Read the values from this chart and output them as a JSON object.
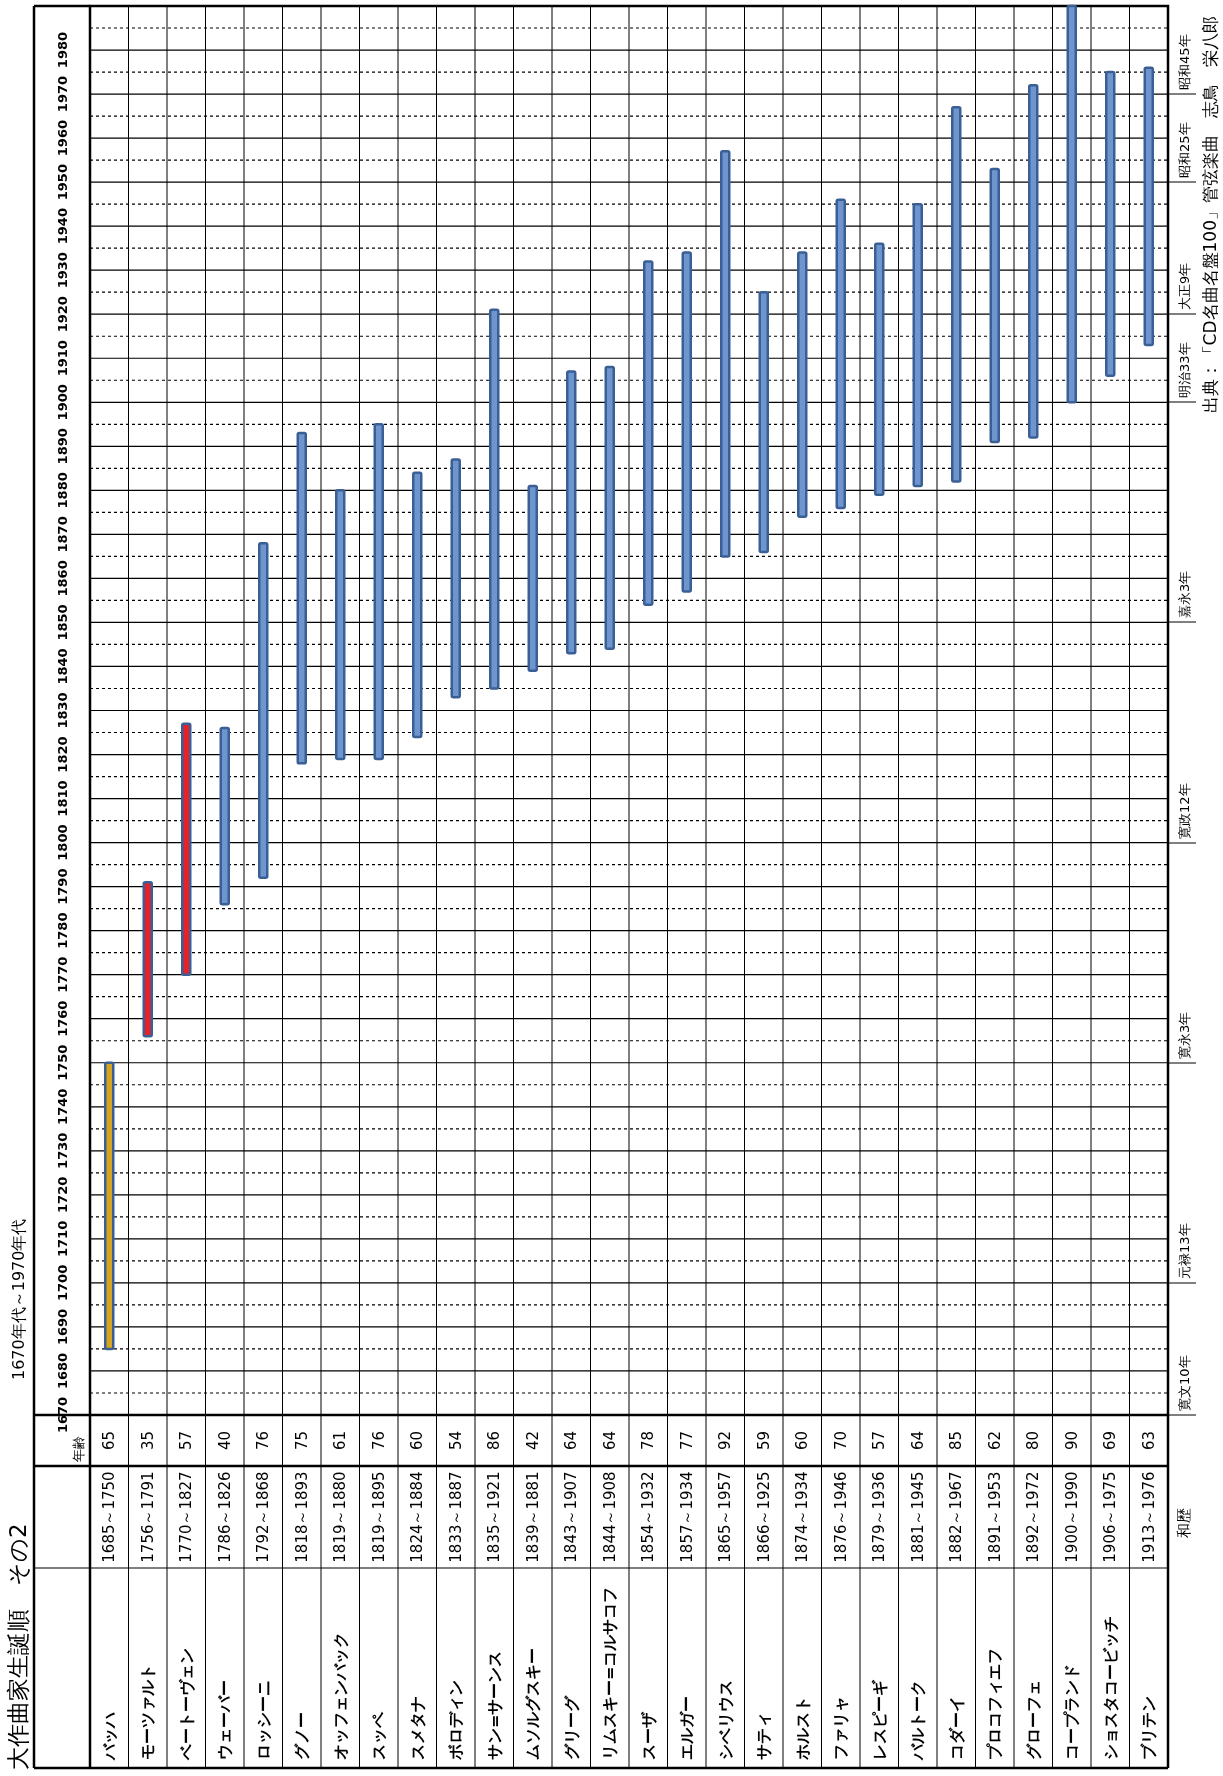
{
  "chart_data": {
    "type": "bar",
    "title": "大作曲家生誕順　その2",
    "subtitle": "1670年代～1970年代",
    "categories": [
      "バッハ",
      "モーツァルト",
      "ベートーヴェン",
      "ウェーバー",
      "ロッシーニ",
      "グノー",
      "オッフェンバック",
      "スッペ",
      "スメタナ",
      "ボロディン",
      "サン=サーンス",
      "ムソルグスキー",
      "グリーグ",
      "リムスキー=コルサコフ",
      "スーザ",
      "エルガー",
      "シベリウス",
      "サティ",
      "ホルスト",
      "ファリャ",
      "レスピーギ",
      "バルトーク",
      "コダーイ",
      "プロコフィエフ",
      "グローフェ",
      "コープランド",
      "ショスタコービッチ",
      "ブリテン"
    ],
    "base": [
      1685,
      1756,
      1770,
      1786,
      1792,
      1818,
      1819,
      1819,
      1824,
      1833,
      1835,
      1839,
      1843,
      1844,
      1854,
      1857,
      1865,
      1866,
      1874,
      1876,
      1879,
      1881,
      1882,
      1891,
      1892,
      1900,
      1906,
      1913
    ],
    "values": [
      65,
      35,
      57,
      40,
      76,
      75,
      61,
      76,
      60,
      54,
      86,
      42,
      64,
      64,
      78,
      77,
      92,
      59,
      60,
      70,
      57,
      64,
      85,
      62,
      80,
      90,
      69,
      63
    ],
    "colors": [
      "#d6a520",
      "#e8202a",
      "#e8202a",
      "#6f95cf",
      "#6f95cf",
      "#6f95cf",
      "#6f95cf",
      "#6f95cf",
      "#6f95cf",
      "#6f95cf",
      "#6f95cf",
      "#6f95cf",
      "#6f95cf",
      "#6f95cf",
      "#6f95cf",
      "#6f95cf",
      "#6f95cf",
      "#6f95cf",
      "#6f95cf",
      "#6f95cf",
      "#6f95cf",
      "#6f95cf",
      "#6f95cf",
      "#6f95cf",
      "#6f95cf",
      "#6f95cf",
      "#6f95cf",
      "#6f95cf"
    ],
    "data_labels": true,
    "ylim": [
      1670,
      1990
    ],
    "yticks": [
      1670,
      1680,
      1690,
      1700,
      1710,
      1720,
      1730,
      1740,
      1750,
      1760,
      1770,
      1780,
      1790,
      1800,
      1810,
      1820,
      1830,
      1840,
      1850,
      1860,
      1870,
      1880,
      1890,
      1900,
      1910,
      1920,
      1930,
      1940,
      1950,
      1960,
      1970,
      1980
    ],
    "grid": true,
    "annotations": [
      "1685～1750",
      "1756～1791",
      "1770～1827",
      "1786～1826",
      "1792～1868",
      "1818～1893",
      "1819～1880",
      "1819～1895",
      "1824～1884",
      "1833～1887",
      "1835～1921",
      "1839～1881",
      "1843～1907",
      "1844～1908",
      "1854～1932",
      "1857～1934",
      "1865～1957",
      "1866～1925",
      "1874～1934",
      "1876～1946",
      "1879～1936",
      "1881～1945",
      "1882～1967",
      "1891～1953",
      "1892～1972",
      "1900～1990",
      "1906～1975",
      "1913～1976",
      "年齢",
      "和歴",
      "寛文10年",
      "元禄13年",
      "寛永3年",
      "寛政12年",
      "嘉永3年",
      "明治33年",
      "大正9年",
      "昭和25年",
      "昭和45年",
      "出典：「CD名曲名盤100」管弦楽曲　志鳥　栄八郎"
    ]
  }
}
